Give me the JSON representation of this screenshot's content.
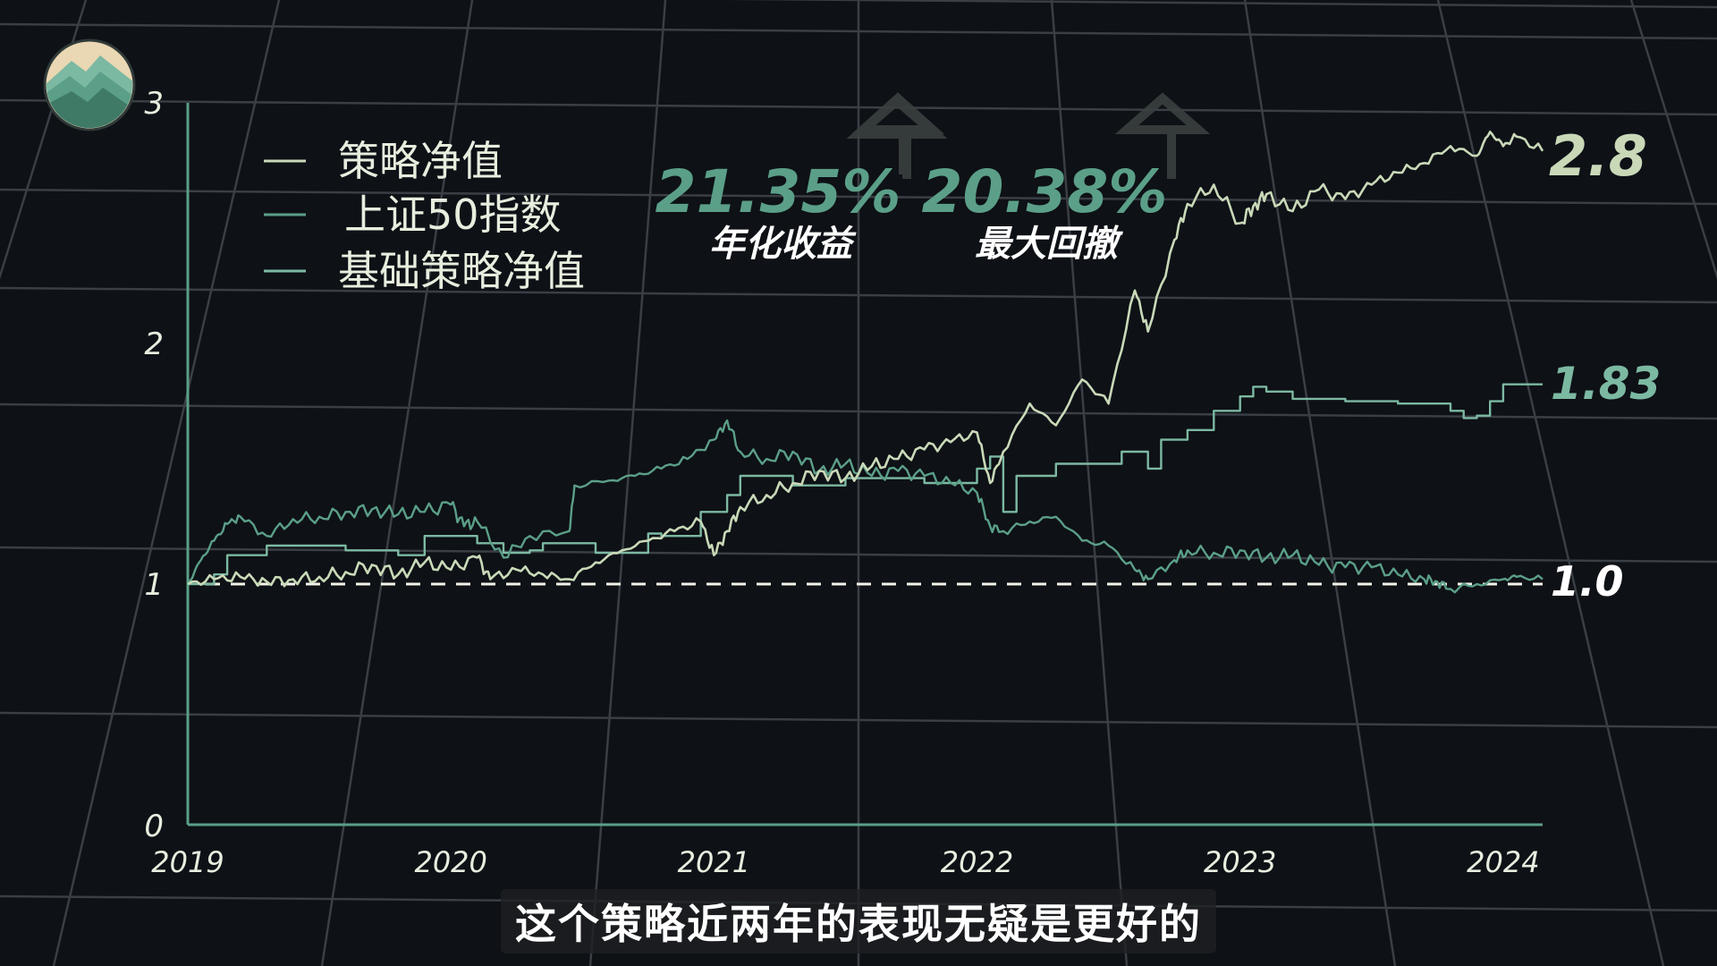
{
  "colors": {
    "background": "#0e1116",
    "grid": "#3a3f45",
    "axis": "#5b9f88",
    "strategy": "#c9d9b8",
    "index": "#5b9f88",
    "base": "#7cb9a2",
    "baseline": "#f2f2e8",
    "text": "#e7eede",
    "arrow": "#3a403f"
  },
  "icons": {
    "logo": "mountain-logo-icon",
    "arrow": "up-arrow-icon"
  },
  "stats": [
    {
      "value": "21.35%",
      "label": "年化收益"
    },
    {
      "value": "20.38%",
      "label": "最大回撤"
    }
  ],
  "subtitle": "这个策略近两年的表现无疑是更好的",
  "chart_data": {
    "type": "line",
    "title": "",
    "xlabel": "",
    "ylabel": "",
    "xlim": [
      2019,
      2024.15
    ],
    "ylim": [
      0,
      3
    ],
    "x_ticks": [
      "2019",
      "2020",
      "2021",
      "2022",
      "2023",
      "2024"
    ],
    "y_ticks": [
      "0",
      "1",
      "2",
      "3"
    ],
    "grid": true,
    "legend_position": "top-left",
    "end_labels": [
      "2.8",
      "1.83",
      "1.0"
    ],
    "baseline": {
      "y": 1.0,
      "style": "dashed"
    },
    "series": [
      {
        "name": "策略净值",
        "color_key": "strategy",
        "x": [
          2019.0,
          2019.1,
          2019.2,
          2019.3,
          2019.4,
          2019.5,
          2019.6,
          2019.7,
          2019.8,
          2019.9,
          2020.0,
          2020.1,
          2020.15,
          2020.25,
          2020.35,
          2020.45,
          2020.55,
          2020.65,
          2020.75,
          2020.85,
          2020.95,
          2021.0,
          2021.05,
          2021.1,
          2021.2,
          2021.3,
          2021.4,
          2021.5,
          2021.6,
          2021.7,
          2021.8,
          2021.9,
          2022.0,
          2022.05,
          2022.1,
          2022.2,
          2022.3,
          2022.4,
          2022.5,
          2022.6,
          2022.65,
          2022.75,
          2022.8,
          2022.9,
          2023.0,
          2023.05,
          2023.1,
          2023.2,
          2023.3,
          2023.4,
          2023.5,
          2023.6,
          2023.7,
          2023.8,
          2023.9,
          2023.95,
          2024.0,
          2024.05,
          2024.15
        ],
        "values": [
          1.0,
          1.02,
          1.03,
          1.01,
          1.02,
          1.03,
          1.05,
          1.08,
          1.04,
          1.09,
          1.06,
          1.11,
          1.02,
          1.06,
          1.04,
          1.02,
          1.09,
          1.14,
          1.18,
          1.22,
          1.26,
          1.12,
          1.22,
          1.32,
          1.37,
          1.42,
          1.47,
          1.44,
          1.49,
          1.52,
          1.56,
          1.59,
          1.63,
          1.42,
          1.55,
          1.75,
          1.66,
          1.85,
          1.75,
          2.22,
          2.05,
          2.43,
          2.58,
          2.66,
          2.5,
          2.57,
          2.62,
          2.55,
          2.64,
          2.6,
          2.66,
          2.71,
          2.75,
          2.82,
          2.78,
          2.88,
          2.82,
          2.86,
          2.8
        ]
      },
      {
        "name": "上证50指数",
        "color_key": "index",
        "x": [
          2019.0,
          2019.05,
          2019.1,
          2019.15,
          2019.2,
          2019.3,
          2019.4,
          2019.5,
          2019.6,
          2019.7,
          2019.8,
          2019.9,
          2020.0,
          2020.05,
          2020.1,
          2020.2,
          2020.3,
          2020.45,
          2020.47,
          2020.6,
          2020.7,
          2020.8,
          2020.9,
          2021.0,
          2021.05,
          2021.1,
          2021.2,
          2021.3,
          2021.4,
          2021.5,
          2021.6,
          2021.7,
          2021.8,
          2021.9,
          2022.0,
          2022.05,
          2022.1,
          2022.2,
          2022.3,
          2022.4,
          2022.5,
          2022.6,
          2022.65,
          2022.75,
          2022.8,
          2022.9,
          2023.0,
          2023.1,
          2023.2,
          2023.3,
          2023.4,
          2023.5,
          2023.6,
          2023.7,
          2023.75,
          2023.8,
          2023.9,
          2024.0,
          2024.05,
          2024.15
        ],
        "values": [
          1.0,
          1.1,
          1.18,
          1.25,
          1.28,
          1.2,
          1.27,
          1.28,
          1.3,
          1.31,
          1.29,
          1.3,
          1.33,
          1.24,
          1.26,
          1.11,
          1.2,
          1.22,
          1.41,
          1.43,
          1.45,
          1.48,
          1.52,
          1.6,
          1.68,
          1.55,
          1.52,
          1.55,
          1.47,
          1.5,
          1.45,
          1.47,
          1.45,
          1.42,
          1.38,
          1.24,
          1.22,
          1.26,
          1.28,
          1.18,
          1.16,
          1.06,
          1.02,
          1.1,
          1.14,
          1.13,
          1.14,
          1.11,
          1.12,
          1.08,
          1.07,
          1.07,
          1.04,
          1.02,
          1.01,
          0.98,
          1.0,
          1.02,
          1.03,
          1.02
        ]
      },
      {
        "name": "基础策略净值",
        "color_key": "base",
        "x": [
          2019.0,
          2019.1,
          2019.15,
          2019.25,
          2019.3,
          2019.5,
          2019.6,
          2019.8,
          2019.9,
          2020.0,
          2020.1,
          2020.2,
          2020.3,
          2020.35,
          2020.5,
          2020.55,
          2020.6,
          2020.75,
          2020.8,
          2020.95,
          2021.0,
          2021.05,
          2021.1,
          2021.25,
          2021.3,
          2021.45,
          2021.5,
          2021.8,
          2022.0,
          2022.05,
          2022.1,
          2022.15,
          2022.25,
          2022.3,
          2022.5,
          2022.55,
          2022.65,
          2022.7,
          2022.75,
          2022.8,
          2022.9,
          2023.0,
          2023.05,
          2023.1,
          2023.2,
          2023.4,
          2023.6,
          2023.8,
          2023.85,
          2023.9,
          2023.95,
          2024.0,
          2024.15
        ],
        "values": [
          1.0,
          1.04,
          1.12,
          1.12,
          1.16,
          1.16,
          1.14,
          1.12,
          1.2,
          1.2,
          1.17,
          1.13,
          1.14,
          1.17,
          1.17,
          1.13,
          1.13,
          1.21,
          1.2,
          1.3,
          1.3,
          1.37,
          1.45,
          1.45,
          1.41,
          1.41,
          1.44,
          1.42,
          1.48,
          1.53,
          1.3,
          1.45,
          1.45,
          1.5,
          1.5,
          1.55,
          1.48,
          1.6,
          1.6,
          1.64,
          1.72,
          1.78,
          1.82,
          1.8,
          1.77,
          1.76,
          1.75,
          1.72,
          1.69,
          1.7,
          1.76,
          1.83,
          1.83
        ]
      }
    ]
  }
}
